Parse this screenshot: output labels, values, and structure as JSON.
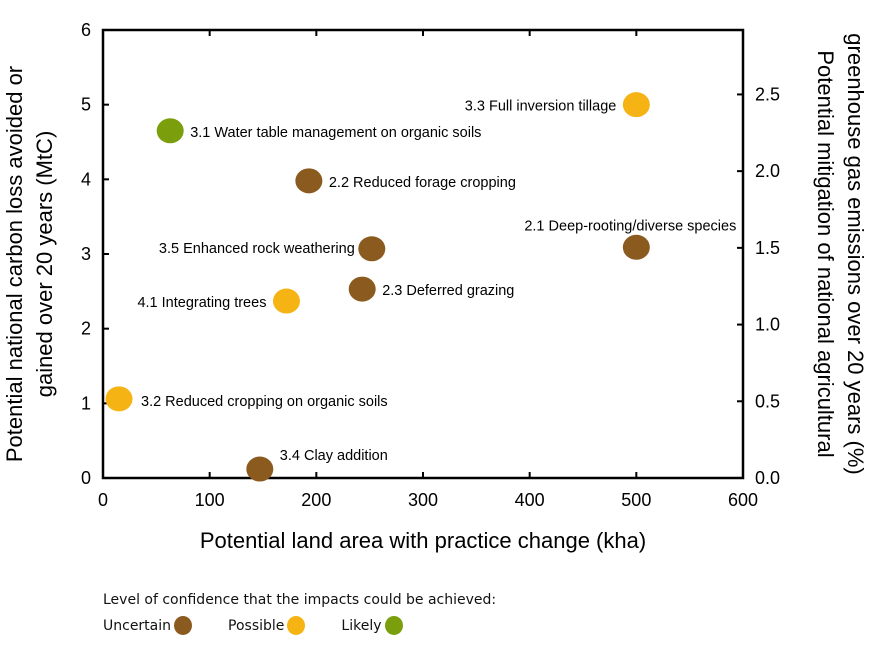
{
  "chart_data": {
    "type": "scatter",
    "xlabel": "Potential land area with practice change  (kha)",
    "ylabel": [
      "Potential national carbon loss avoided or",
      "gained over 20 years (MtC)"
    ],
    "y2label": [
      "Potential mitigation of national agricultural",
      "greenhouse gas emissions over 20 years (%)"
    ],
    "xlim": [
      0,
      600
    ],
    "ylim": [
      0,
      6
    ],
    "y2lim": [
      0,
      2.92
    ],
    "xticks": [
      "0",
      "100",
      "200",
      "300",
      "400",
      "500",
      "600"
    ],
    "yticks": [
      "0",
      "1",
      "2",
      "3",
      "4",
      "5",
      "6"
    ],
    "y2ticks": [
      "0.0",
      "0.5",
      "1.0",
      "1.5",
      "2.0",
      "2.5"
    ],
    "grid": false,
    "points": [
      {
        "label": "3.1 Water table management on organic soils",
        "x": 63,
        "y": 4.65,
        "confidence": "Likely"
      },
      {
        "label": "3.3 Full inversion tillage",
        "x": 500,
        "y": 5.0,
        "confidence": "Possible"
      },
      {
        "label": "2.2 Reduced forage cropping",
        "x": 193,
        "y": 3.98,
        "confidence": "Uncertain"
      },
      {
        "label": "2.1 Deep-rooting/diverse species",
        "x": 500,
        "y": 3.09,
        "confidence": "Uncertain"
      },
      {
        "label": "3.5 Enhanced rock weathering",
        "x": 252,
        "y": 3.07,
        "confidence": "Uncertain"
      },
      {
        "label": "2.3 Deferred grazing",
        "x": 243,
        "y": 2.53,
        "confidence": "Uncertain"
      },
      {
        "label": "4.1 Integrating trees",
        "x": 172,
        "y": 2.37,
        "confidence": "Possible"
      },
      {
        "label": "3.2 Reduced cropping on organic soils",
        "x": 15,
        "y": 1.06,
        "confidence": "Possible"
      },
      {
        "label": "3.4 Clay addition",
        "x": 147,
        "y": 0.12,
        "confidence": "Uncertain"
      }
    ],
    "colors": {
      "Uncertain": "#8a5a1f",
      "Possible": "#f6b314",
      "Likely": "#7b9f0c"
    },
    "legend": {
      "title": "Level of confidence that the impacts could be achieved:",
      "placement": "bottom-left",
      "items": [
        "Uncertain",
        "Possible",
        "Likely"
      ]
    }
  }
}
